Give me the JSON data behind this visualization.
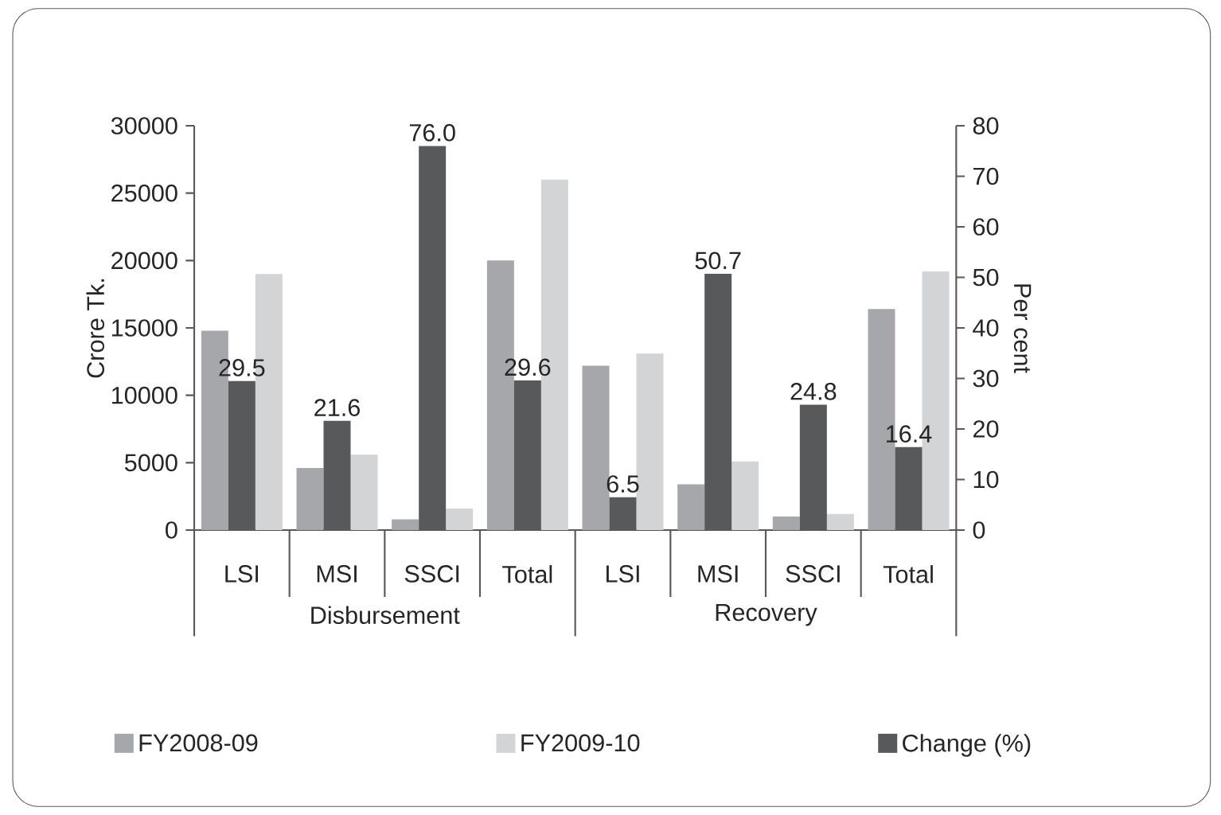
{
  "chart_data": {
    "type": "bar",
    "ylabel": "Crore Tk.",
    "y2label": "Per cent",
    "categories": [
      "LSI",
      "MSI",
      "SSCI",
      "Total",
      "LSI",
      "MSI",
      "SSCI",
      "Total"
    ],
    "annotations": [
      "Disbursement",
      "Recovery"
    ],
    "series": [
      {
        "name": "FY2008-09",
        "color": "#a6a7ab",
        "values": [
          14800,
          4600,
          800,
          20000,
          12200,
          3400,
          1000,
          16400
        ]
      },
      {
        "name": "FY2009-10",
        "color": "#d3d4d6",
        "values": [
          19000,
          5600,
          1600,
          26000,
          13100,
          5100,
          1200,
          19200
        ]
      },
      {
        "name": "Change (%)",
        "color": "#58595b",
        "axis": "y2",
        "values": [
          29.5,
          21.6,
          76.0,
          29.6,
          6.5,
          50.7,
          24.8,
          16.4
        ],
        "value_labels": [
          "29.5",
          "21.6",
          "76.0",
          "29.6",
          "6.5",
          "50.7",
          "24.8",
          "16.4"
        ]
      }
    ],
    "ylim": [
      0,
      30000
    ],
    "yticks": [
      0,
      5000,
      10000,
      15000,
      20000,
      25000,
      30000
    ],
    "y2lim": [
      0,
      80
    ],
    "y2ticks": [
      0,
      10,
      20,
      30,
      40,
      50,
      60,
      70,
      80
    ],
    "legend": "bottom",
    "grid": false
  }
}
